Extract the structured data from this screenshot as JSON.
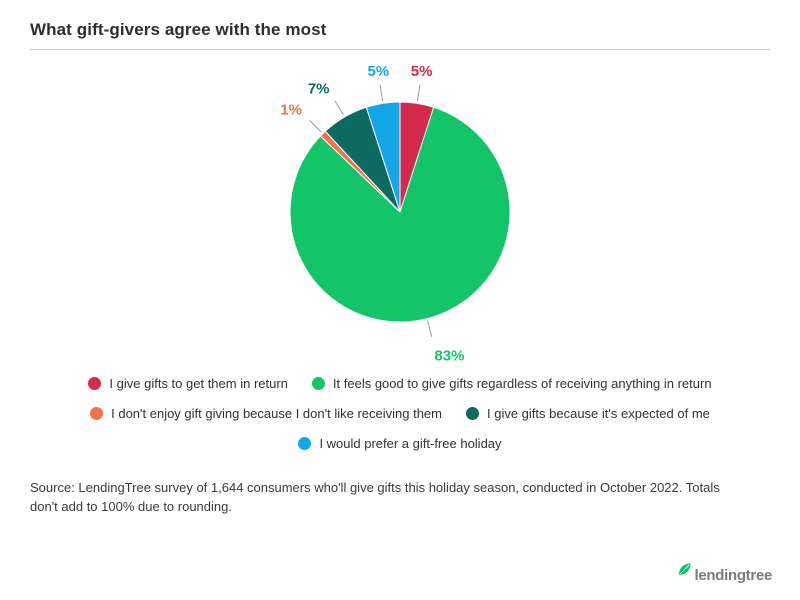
{
  "header": {
    "title": "What gift-givers agree with the most"
  },
  "chart_data": {
    "type": "pie",
    "title": "What gift-givers agree with the most",
    "start_angle_deg": 0,
    "direction": "clockwise",
    "legend_position": "bottom",
    "unit": "%",
    "slices": [
      {
        "label": "I give gifts to get them in return",
        "value": 5,
        "display": "5%",
        "color": "#d42a4d"
      },
      {
        "label": "It feels good to give gifts regardless of receiving anything in return",
        "value": 83,
        "display": "83%",
        "color": "#13c468"
      },
      {
        "label": "I don't enjoy gift giving because I don't like receiving them",
        "value": 1,
        "display": "1%",
        "color": "#f4724d"
      },
      {
        "label": "I give gifts because it's expected of me",
        "value": 7,
        "display": "7%",
        "color": "#0c6a60"
      },
      {
        "label": "I would prefer a gift-free holiday",
        "value": 5,
        "display": "5%",
        "color": "#15a6e8"
      }
    ]
  },
  "footer": {
    "source_text": "Source: LendingTree survey of 1,644 consumers who'll give gifts this holiday season, conducted in October 2022. Totals don't add to 100% due to rounding.",
    "logo_text": "lendingtree"
  },
  "colors": {
    "leader_line": "#9a9a9a",
    "divider": "#c9c9c9",
    "logo_leaf_green": "#0bbf72",
    "logo_text_gray": "#7b7c7e"
  }
}
